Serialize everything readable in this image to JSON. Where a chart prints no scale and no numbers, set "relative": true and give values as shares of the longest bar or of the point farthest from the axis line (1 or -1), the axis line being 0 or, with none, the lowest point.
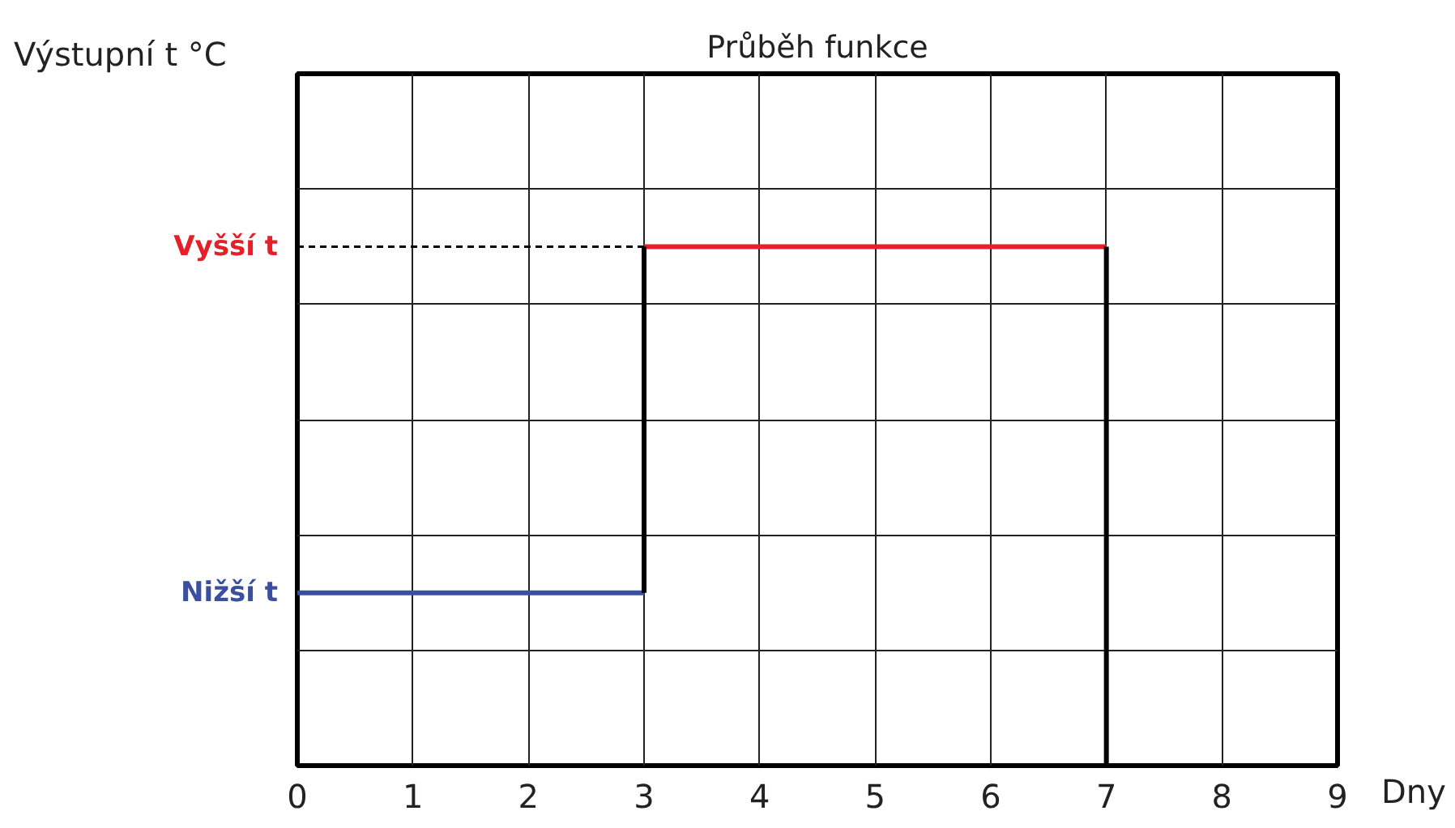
{
  "chart_data": {
    "type": "line",
    "title": "Průběh funkce",
    "annotations": [
      "Výstupní t °C"
    ],
    "xlabel": "Dny",
    "relative": true,
    "xlim": [
      0,
      9
    ],
    "xticks": [
      0,
      1,
      2,
      3,
      4,
      5,
      6,
      7,
      8,
      9
    ],
    "grid": true,
    "series": [
      {
        "name": "Nižší t",
        "color": "#3a4f9e",
        "x": [
          0,
          3
        ],
        "values": [
          0.333,
          0.333
        ]
      },
      {
        "name": "Vyšší t",
        "color": "#e5202a",
        "x": [
          3,
          7
        ],
        "values": [
          1,
          1
        ]
      },
      {
        "color": "#000000",
        "x": [
          3,
          3
        ],
        "values": [
          0.333,
          1
        ]
      },
      {
        "color": "#000000",
        "x": [
          7,
          7
        ],
        "values": [
          1,
          0
        ]
      },
      {
        "color": "#000000",
        "x": [
          0,
          3
        ],
        "values": [
          1,
          1
        ],
        "line_style": "dashed"
      }
    ]
  }
}
